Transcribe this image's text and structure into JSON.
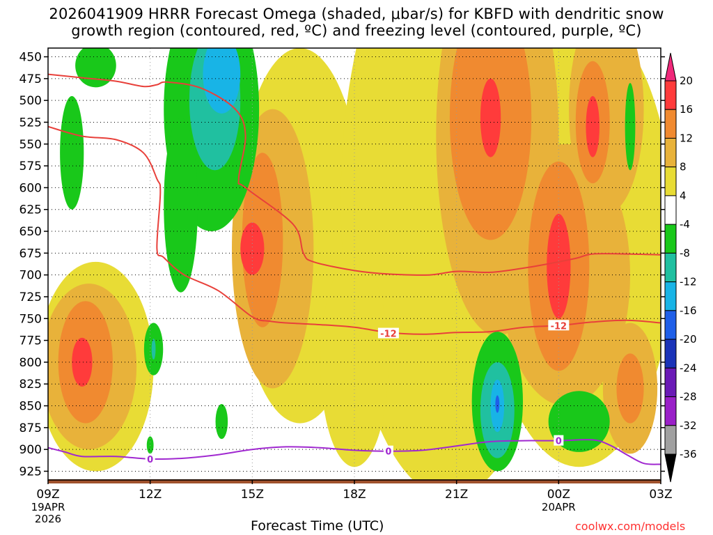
{
  "title_line1": "2026041909 HRRR Forecast Omega (shaded, μbar/s) for KBFD with dendritic snow",
  "title_line2": "growth region (contoured, red, ºC) and freezing level (contoured, purple, ºC)",
  "credit": "coolwx.com/models",
  "chart_data": {
    "type": "heatmap",
    "title": "2026041909 HRRR Forecast Omega (shaded, μbar/s) for KBFD with dendritic snow growth region (contoured, red, ºC) and freezing level (contoured, purple, ºC)",
    "xlabel": "Forecast Time (UTC)",
    "ylabel": "",
    "xlim_hours": [
      0,
      18
    ],
    "ylim_hpa": [
      440,
      935
    ],
    "y_ticks": [
      450,
      475,
      500,
      525,
      550,
      575,
      600,
      625,
      650,
      675,
      700,
      725,
      750,
      775,
      800,
      825,
      850,
      875,
      900,
      925
    ],
    "x_ticks": [
      {
        "hour": 0,
        "label": "09Z",
        "sub1": "19APR",
        "sub2": "2026"
      },
      {
        "hour": 3,
        "label": "12Z",
        "sub1": "",
        "sub2": ""
      },
      {
        "hour": 6,
        "label": "15Z",
        "sub1": "",
        "sub2": ""
      },
      {
        "hour": 9,
        "label": "18Z",
        "sub1": "",
        "sub2": ""
      },
      {
        "hour": 12,
        "label": "21Z",
        "sub1": "",
        "sub2": ""
      },
      {
        "hour": 15,
        "label": "00Z",
        "sub1": "20APR",
        "sub2": ""
      },
      {
        "hour": 18,
        "label": "03Z",
        "sub1": "",
        "sub2": ""
      }
    ],
    "colorbar": {
      "labels": [
        "20",
        "16",
        "12",
        "8",
        "4",
        "-4",
        "-8",
        "-12",
        "-16",
        "-20",
        "-24",
        "-28",
        "-32",
        "-36"
      ],
      "colors": [
        "#ff3b3b",
        "#f08a30",
        "#e8b23a",
        "#e8dc35",
        "#ffffff",
        "#19c81a",
        "#20c0a0",
        "#18b4e6",
        "#1f5fe8",
        "#1a33b8",
        "#6a1ab6",
        "#9a20c8",
        "#a0a0a0"
      ],
      "top_arrow_color": "#f0287a",
      "bottom_arrow_color": "#000000"
    },
    "contours": [
      {
        "name": "dendritic-upper (-12)",
        "color": "#e8403a",
        "level": "-12",
        "points": [
          [
            0,
            470
          ],
          [
            1,
            474
          ],
          [
            2,
            478
          ],
          [
            2.8,
            484
          ],
          [
            3.2,
            482
          ],
          [
            3.5,
            479
          ],
          [
            4.5,
            486
          ],
          [
            5.5,
            510
          ],
          [
            5.8,
            540
          ],
          [
            5.6,
            590
          ],
          [
            5.8,
            600
          ],
          [
            7.2,
            642
          ],
          [
            7.5,
            675
          ],
          [
            7.8,
            685
          ],
          [
            9,
            695
          ],
          [
            10,
            699
          ],
          [
            11.2,
            700
          ],
          [
            12,
            696
          ],
          [
            13,
            697
          ],
          [
            14,
            692
          ],
          [
            14.6,
            688
          ],
          [
            15.5,
            681
          ],
          [
            16,
            676
          ],
          [
            17,
            676
          ],
          [
            18,
            677
          ]
        ]
      },
      {
        "name": "dendritic-lower (-12)",
        "color": "#e8403a",
        "level": "-12",
        "points": [
          [
            0,
            530
          ],
          [
            1,
            541
          ],
          [
            2,
            545
          ],
          [
            2.8,
            560
          ],
          [
            3.2,
            590
          ],
          [
            3.3,
            605
          ],
          [
            3.2,
            670
          ],
          [
            3.4,
            680
          ],
          [
            4,
            700
          ],
          [
            5,
            718
          ],
          [
            6,
            748
          ],
          [
            6.5,
            753
          ],
          [
            7,
            755
          ],
          [
            8,
            757
          ],
          [
            9,
            760
          ],
          [
            10,
            766
          ],
          [
            11,
            768
          ],
          [
            12,
            766
          ],
          [
            13,
            765
          ],
          [
            14,
            760
          ],
          [
            15,
            758
          ],
          [
            16,
            754
          ],
          [
            17,
            752
          ],
          [
            18,
            755
          ]
        ],
        "labels": [
          {
            "hour": 10,
            "hpa": 767,
            "text": "-12"
          },
          {
            "hour": 15,
            "hpa": 758,
            "text": "-12"
          }
        ]
      },
      {
        "name": "freezing-level (0)",
        "color": "#a028d0",
        "level": "0",
        "points": [
          [
            0,
            898
          ],
          [
            0.5,
            903
          ],
          [
            1,
            908
          ],
          [
            2,
            908
          ],
          [
            3,
            911
          ],
          [
            4,
            910
          ],
          [
            5,
            906
          ],
          [
            6,
            900
          ],
          [
            7,
            897
          ],
          [
            8,
            898
          ],
          [
            9,
            901
          ],
          [
            10,
            902
          ],
          [
            11,
            901
          ],
          [
            12,
            896
          ],
          [
            13,
            891
          ],
          [
            14,
            890
          ],
          [
            15,
            890
          ],
          [
            16,
            889
          ],
          [
            16.5,
            895
          ],
          [
            17,
            906
          ],
          [
            17.5,
            916
          ],
          [
            18,
            917
          ]
        ],
        "labels": [
          {
            "hour": 3,
            "hpa": 911,
            "text": "0"
          },
          {
            "hour": 10,
            "hpa": 902,
            "text": "0"
          },
          {
            "hour": 15,
            "hpa": 890,
            "text": "0"
          }
        ]
      }
    ],
    "regions": [
      {
        "name": "positive omega background",
        "layers": [
          {
            "value": 4,
            "color": "#e8dc35",
            "cx": 7.4,
            "cy": 655,
            "rx": 1.9,
            "ry": 215
          },
          {
            "value": 4,
            "color": "#e8dc35",
            "cx": 11.8,
            "cy": 615,
            "rx": 3.2,
            "ry": 340
          },
          {
            "value": 4,
            "color": "#e8dc35",
            "cx": 15.6,
            "cy": 660,
            "rx": 2.8,
            "ry": 260
          },
          {
            "value": 4,
            "color": "#e8dc35",
            "cx": 1.4,
            "cy": 805,
            "rx": 1.7,
            "ry": 120
          },
          {
            "value": 4,
            "color": "#e8dc35",
            "cx": 9.0,
            "cy": 800,
            "rx": 1.0,
            "ry": 120
          },
          {
            "value": 8,
            "color": "#e8b23a",
            "cx": 6.6,
            "cy": 670,
            "rx": 1.2,
            "ry": 160
          },
          {
            "value": 8,
            "color": "#e8b23a",
            "cx": 13.2,
            "cy": 540,
            "rx": 1.8,
            "ry": 230
          },
          {
            "value": 8,
            "color": "#e8b23a",
            "cx": 15.2,
            "cy": 700,
            "rx": 1.9,
            "ry": 150
          },
          {
            "value": 8,
            "color": "#e8b23a",
            "cx": 1.2,
            "cy": 805,
            "rx": 1.4,
            "ry": 95
          },
          {
            "value": 8,
            "color": "#e8b23a",
            "cx": 16.4,
            "cy": 510,
            "rx": 1.1,
            "ry": 120
          },
          {
            "value": 8,
            "color": "#e8b23a",
            "cx": 17.1,
            "cy": 830,
            "rx": 0.8,
            "ry": 75
          },
          {
            "value": 12,
            "color": "#f08a30",
            "cx": 6.3,
            "cy": 660,
            "rx": 0.6,
            "ry": 100
          },
          {
            "value": 12,
            "color": "#f08a30",
            "cx": 13.0,
            "cy": 520,
            "rx": 1.2,
            "ry": 140
          },
          {
            "value": 12,
            "color": "#f08a30",
            "cx": 15.0,
            "cy": 690,
            "rx": 0.9,
            "ry": 120
          },
          {
            "value": 12,
            "color": "#f08a30",
            "cx": 1.1,
            "cy": 800,
            "rx": 0.8,
            "ry": 70
          },
          {
            "value": 12,
            "color": "#f08a30",
            "cx": 16.0,
            "cy": 525,
            "rx": 0.5,
            "ry": 70
          },
          {
            "value": 12,
            "color": "#f08a30",
            "cx": 17.1,
            "cy": 830,
            "rx": 0.4,
            "ry": 40
          },
          {
            "value": 16,
            "color": "#ff3b3b",
            "cx": 6.0,
            "cy": 670,
            "rx": 0.35,
            "ry": 30
          },
          {
            "value": 16,
            "color": "#ff3b3b",
            "cx": 13.0,
            "cy": 520,
            "rx": 0.3,
            "ry": 45
          },
          {
            "value": 16,
            "color": "#ff3b3b",
            "cx": 15.0,
            "cy": 690,
            "rx": 0.35,
            "ry": 60
          },
          {
            "value": 16,
            "color": "#ff3b3b",
            "cx": 1.0,
            "cy": 800,
            "rx": 0.3,
            "ry": 28
          },
          {
            "value": 16,
            "color": "#ff3b3b",
            "cx": 16.0,
            "cy": 530,
            "rx": 0.2,
            "ry": 35
          }
        ]
      },
      {
        "name": "negative omega",
        "layers": [
          {
            "value": -4,
            "color": "#19c81a",
            "cx": 1.4,
            "cy": 460,
            "rx": 0.6,
            "ry": 25
          },
          {
            "value": -4,
            "color": "#19c81a",
            "cx": 4.8,
            "cy": 510,
            "rx": 1.4,
            "ry": 140
          },
          {
            "value": -4,
            "color": "#19c81a",
            "cx": 3.9,
            "cy": 620,
            "rx": 0.5,
            "ry": 100
          },
          {
            "value": -4,
            "color": "#19c81a",
            "cx": 0.7,
            "cy": 560,
            "rx": 0.35,
            "ry": 65
          },
          {
            "value": -4,
            "color": "#19c81a",
            "cx": 3.1,
            "cy": 785,
            "rx": 0.28,
            "ry": 30
          },
          {
            "value": -4,
            "color": "#19c81a",
            "cx": 3.0,
            "cy": 895,
            "rx": 0.1,
            "ry": 10
          },
          {
            "value": -4,
            "color": "#19c81a",
            "cx": 5.1,
            "cy": 868,
            "rx": 0.18,
            "ry": 20
          },
          {
            "value": -4,
            "color": "#19c81a",
            "cx": 13.2,
            "cy": 845,
            "rx": 0.75,
            "ry": 80
          },
          {
            "value": -4,
            "color": "#19c81a",
            "cx": 15.6,
            "cy": 868,
            "rx": 0.9,
            "ry": 35
          },
          {
            "value": -4,
            "color": "#19c81a",
            "cx": 17.1,
            "cy": 530,
            "rx": 0.15,
            "ry": 50
          },
          {
            "value": -8,
            "color": "#20c0a0",
            "cx": 4.9,
            "cy": 500,
            "rx": 0.75,
            "ry": 80
          },
          {
            "value": -8,
            "color": "#20c0a0",
            "cx": 13.2,
            "cy": 855,
            "rx": 0.5,
            "ry": 55
          },
          {
            "value": -8,
            "color": "#20c0a0",
            "cx": 3.1,
            "cy": 785,
            "rx": 0.06,
            "ry": 12
          },
          {
            "value": -12,
            "color": "#18b4e6",
            "cx": 5.1,
            "cy": 470,
            "rx": 0.55,
            "ry": 45
          },
          {
            "value": -12,
            "color": "#18b4e6",
            "cx": 13.2,
            "cy": 850,
            "rx": 0.2,
            "ry": 30
          },
          {
            "value": -16,
            "color": "#1f5fe8",
            "cx": 13.2,
            "cy": 848,
            "rx": 0.06,
            "ry": 10
          }
        ]
      }
    ]
  }
}
